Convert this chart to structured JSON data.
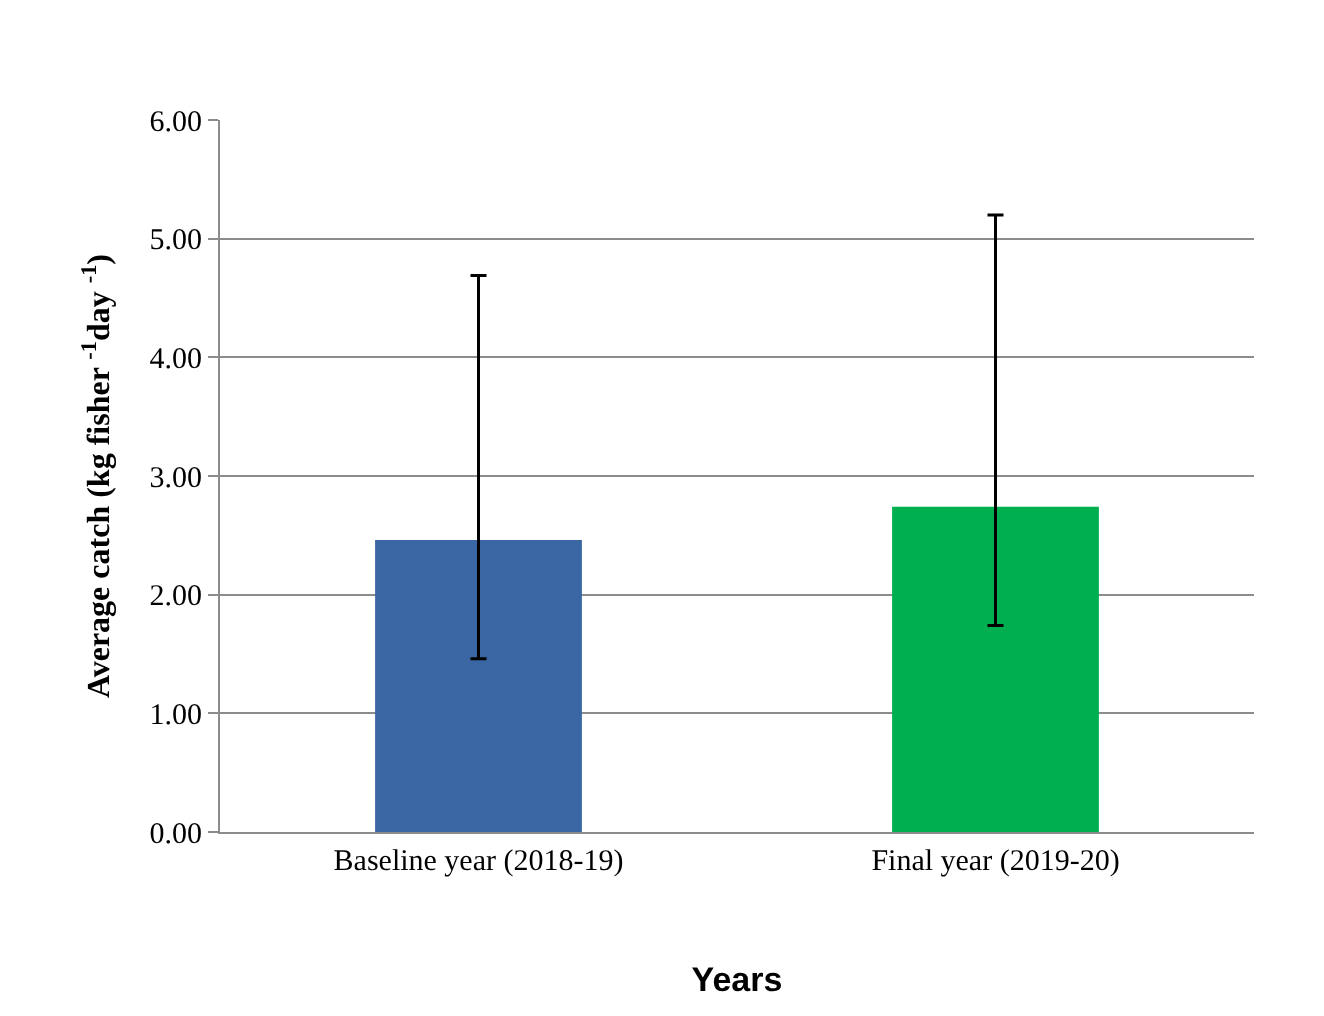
{
  "chart_data": {
    "type": "bar",
    "xlabel": "Years",
    "ylabel": "Average catch (kg fisher $^{-1}$day $^{-1}$)",
    "categories": [
      "Baseline year (2018-19)",
      "Final year (2019-20)"
    ],
    "values": [
      2.46,
      2.74
    ],
    "colors": [
      "#3a67a3",
      "#00b050"
    ],
    "errors": [
      [
        1.46,
        4.69
      ],
      [
        1.74,
        5.2
      ]
    ],
    "ylim": [
      0,
      6
    ],
    "yticks": [
      {
        "value": 0,
        "label": "0.00"
      },
      {
        "value": 1,
        "label": "1.00"
      },
      {
        "value": 2,
        "label": "2.00"
      },
      {
        "value": 3,
        "label": "3.00"
      },
      {
        "value": 4,
        "label": "4.00"
      },
      {
        "value": 5,
        "label": "5.00"
      },
      {
        "value": 6,
        "label": "6.00"
      }
    ],
    "grid": "y",
    "legend": false
  }
}
